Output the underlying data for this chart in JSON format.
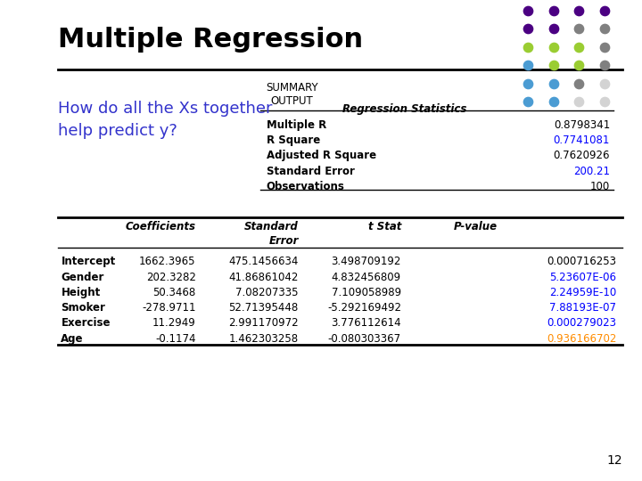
{
  "title": "Multiple Regression",
  "subtitle": "How do all the Xs together\nhelp predict y?",
  "subtitle_color": "#3333CC",
  "background_color": "#FFFFFF",
  "summary_output_label": "SUMMARY\nOUTPUT",
  "regression_stats_title": "Regression Statistics",
  "regression_stats": [
    [
      "Multiple R",
      "0.8798341",
      false
    ],
    [
      "R Square",
      "0.7741081",
      true
    ],
    [
      "Adjusted R Square",
      "0.7620926",
      false
    ],
    [
      "Standard Error",
      "200.21",
      true
    ],
    [
      "Observations",
      "100",
      false
    ]
  ],
  "coeff_headers": [
    "",
    "Coefficients",
    "Standard\nError",
    "t Stat",
    "P-value"
  ],
  "coeff_data": [
    [
      "Intercept",
      "1662.3965",
      "475.1456634",
      "3.498709192",
      "0.000716253",
      false
    ],
    [
      "Gender",
      "202.3282",
      "41.86861042",
      "4.832456809",
      "5.23607E-06",
      true
    ],
    [
      "Height",
      "50.3468",
      "7.08207335",
      "7.109058989",
      "2.24959E-10",
      true
    ],
    [
      "Smoker",
      "-278.9711",
      "52.71395448",
      "-5.292169492",
      "7.88193E-07",
      true
    ],
    [
      "Exercise",
      "11.2949",
      "2.991170972",
      "3.776112614",
      "0.000279023",
      true
    ],
    [
      "Age",
      "-0.1174",
      "1.462303258",
      "-0.080303367",
      "0.936166702",
      "orange"
    ]
  ],
  "highlight_blue": "#0000FF",
  "highlight_orange": "#FF8C00",
  "page_number": "12",
  "horizontal_line_color": "#000000",
  "dot_grid": [
    [
      "#4B0082",
      "#4B0082",
      "#4B0082",
      "#4B0082"
    ],
    [
      "#4B0082",
      "#4B0082",
      "#808080",
      "#808080"
    ],
    [
      "#9ACD32",
      "#9ACD32",
      "#9ACD32",
      "#808080"
    ],
    [
      "#4B9CD3",
      "#9ACD32",
      "#9ACD32",
      "#808080"
    ],
    [
      "#4B9CD3",
      "#4B9CD3",
      "#808080",
      "#d3d3d3"
    ],
    [
      "#4B9CD3",
      "#4B9CD3",
      "#d3d3d3",
      "#d3d3d3"
    ]
  ]
}
